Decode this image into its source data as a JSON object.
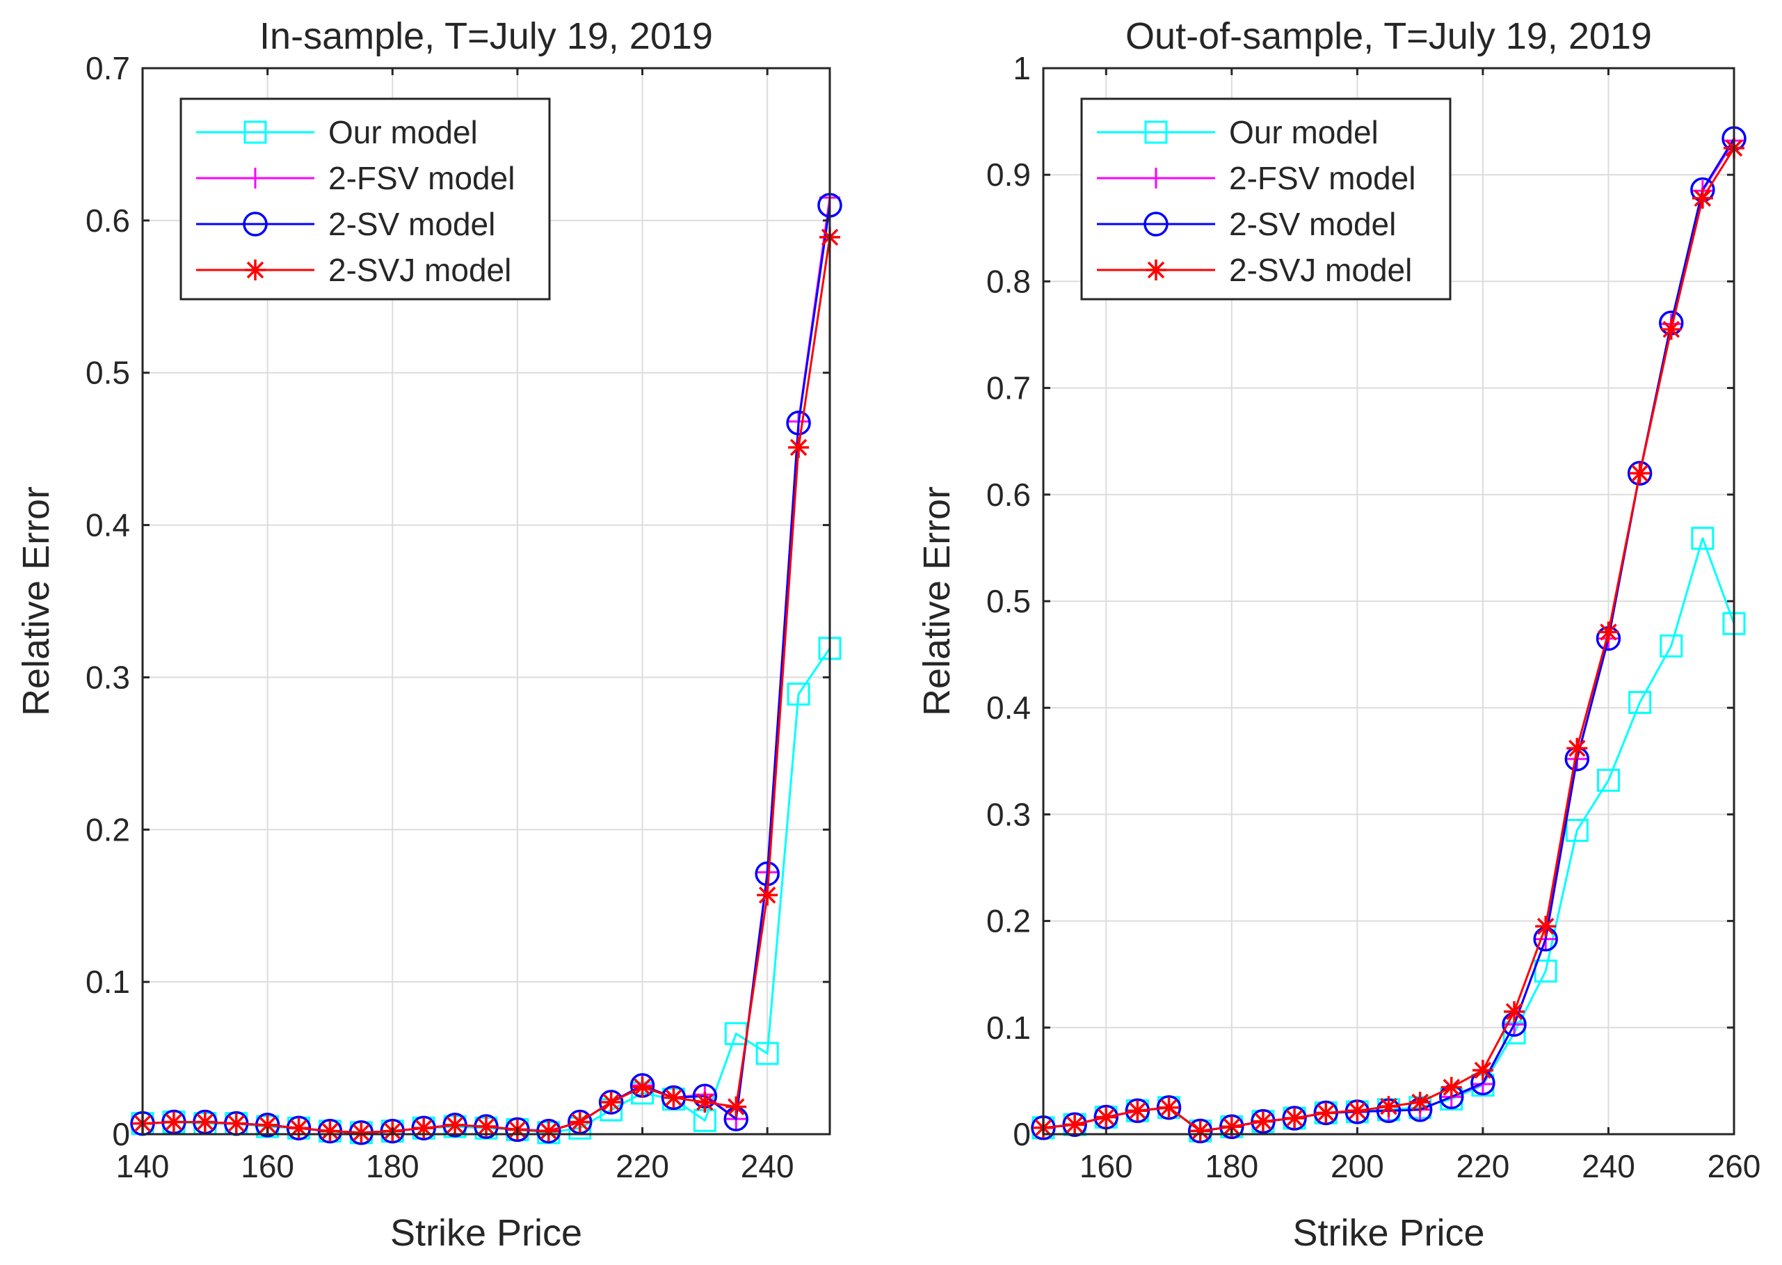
{
  "chart_data": [
    {
      "type": "line",
      "title": "In-sample, T=July 19, 2019",
      "xlabel": "Strike Price",
      "ylabel": "Relative Error",
      "xlim": [
        140,
        250
      ],
      "ylim": [
        0,
        0.7
      ],
      "xticks": [
        140,
        160,
        180,
        200,
        220,
        240
      ],
      "xtick_labels": [
        "140",
        "160",
        "180",
        "200",
        "220",
        "240"
      ],
      "yticks": [
        0,
        0.1,
        0.2,
        0.3,
        0.4,
        0.5,
        0.6,
        0.7
      ],
      "ytick_labels": [
        "0",
        "0.1",
        "0.2",
        "0.3",
        "0.4",
        "0.5",
        "0.6",
        "0.7"
      ],
      "grid": true,
      "legend_position": "top-left",
      "x": [
        140,
        145,
        150,
        155,
        160,
        165,
        170,
        175,
        180,
        185,
        190,
        195,
        200,
        205,
        210,
        215,
        220,
        225,
        230,
        235,
        240,
        245,
        250
      ],
      "series": [
        {
          "name": "Our model",
          "color": "#00ffff",
          "marker": "square",
          "values": [
            0.007,
            0.008,
            0.007,
            0.007,
            0.005,
            0.004,
            0.002,
            0.001,
            0.002,
            0.004,
            0.005,
            0.004,
            0.003,
            0.001,
            0.004,
            0.016,
            0.027,
            0.023,
            0.009,
            0.066,
            0.053,
            0.289,
            0.319
          ]
        },
        {
          "name": "2-FSV model",
          "color": "#ff00ff",
          "marker": "plus",
          "values": [
            0.007,
            0.008,
            0.008,
            0.007,
            0.006,
            0.004,
            0.002,
            0.001,
            0.002,
            0.004,
            0.006,
            0.005,
            0.003,
            0.002,
            0.008,
            0.021,
            0.032,
            0.024,
            0.026,
            0.01,
            0.172,
            0.468,
            0.615
          ]
        },
        {
          "name": "2-SV model",
          "color": "#0000ff",
          "marker": "circle",
          "values": [
            0.007,
            0.008,
            0.008,
            0.007,
            0.006,
            0.004,
            0.002,
            0.001,
            0.002,
            0.004,
            0.006,
            0.005,
            0.003,
            0.002,
            0.008,
            0.021,
            0.032,
            0.024,
            0.025,
            0.01,
            0.171,
            0.467,
            0.61
          ]
        },
        {
          "name": "2-SVJ model",
          "color": "#ff0000",
          "marker": "asterisk",
          "values": [
            0.007,
            0.008,
            0.008,
            0.007,
            0.006,
            0.004,
            0.002,
            0.001,
            0.002,
            0.004,
            0.006,
            0.005,
            0.003,
            0.002,
            0.008,
            0.021,
            0.031,
            0.024,
            0.021,
            0.018,
            0.157,
            0.451,
            0.589
          ]
        }
      ]
    },
    {
      "type": "line",
      "title": "Out-of-sample, T=July 19, 2019",
      "xlabel": "Strike Price",
      "ylabel": "Relative Error",
      "xlim": [
        150,
        260
      ],
      "ylim": [
        0,
        1
      ],
      "xticks": [
        160,
        180,
        200,
        220,
        240,
        260
      ],
      "xtick_labels": [
        "160",
        "180",
        "200",
        "220",
        "240",
        "260"
      ],
      "yticks": [
        0,
        0.1,
        0.2,
        0.3,
        0.4,
        0.5,
        0.6,
        0.7,
        0.8,
        0.9,
        1
      ],
      "ytick_labels": [
        "0",
        "0.1",
        "0.2",
        "0.3",
        "0.4",
        "0.5",
        "0.6",
        "0.7",
        "0.8",
        "0.9",
        "1"
      ],
      "grid": true,
      "legend_position": "top-left",
      "x": [
        150,
        155,
        160,
        165,
        170,
        175,
        180,
        185,
        190,
        195,
        200,
        205,
        210,
        215,
        220,
        225,
        230,
        235,
        240,
        245,
        250,
        255,
        260
      ],
      "series": [
        {
          "name": "Our model",
          "color": "#00ffff",
          "marker": "square",
          "values": [
            0.006,
            0.009,
            0.016,
            0.022,
            0.025,
            0.003,
            0.007,
            0.012,
            0.015,
            0.02,
            0.021,
            0.023,
            0.025,
            0.033,
            0.046,
            0.095,
            0.153,
            0.285,
            0.332,
            0.405,
            0.458,
            0.559,
            0.479
          ]
        },
        {
          "name": "2-FSV model",
          "color": "#ff00ff",
          "marker": "plus",
          "values": [
            0.006,
            0.009,
            0.016,
            0.022,
            0.025,
            0.003,
            0.007,
            0.012,
            0.015,
            0.02,
            0.021,
            0.022,
            0.023,
            0.035,
            0.047,
            0.103,
            0.183,
            0.352,
            0.465,
            0.62,
            0.76,
            0.885,
            0.932
          ]
        },
        {
          "name": "2-SV model",
          "color": "#0000ff",
          "marker": "circle",
          "values": [
            0.006,
            0.009,
            0.016,
            0.022,
            0.025,
            0.003,
            0.007,
            0.012,
            0.015,
            0.02,
            0.021,
            0.022,
            0.023,
            0.035,
            0.048,
            0.103,
            0.183,
            0.352,
            0.465,
            0.62,
            0.761,
            0.886,
            0.934
          ]
        },
        {
          "name": "2-SVJ model",
          "color": "#ff0000",
          "marker": "asterisk",
          "values": [
            0.006,
            0.009,
            0.016,
            0.022,
            0.025,
            0.003,
            0.007,
            0.012,
            0.015,
            0.02,
            0.022,
            0.026,
            0.03,
            0.044,
            0.06,
            0.115,
            0.195,
            0.362,
            0.471,
            0.62,
            0.755,
            0.878,
            0.925
          ]
        }
      ]
    }
  ]
}
